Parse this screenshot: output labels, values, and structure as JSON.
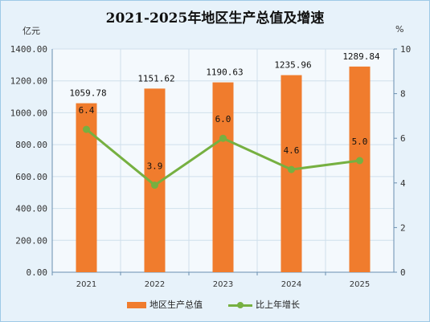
{
  "chart_data": {
    "type": "bar+line",
    "title": "2021-2025年地区生产总值及增速",
    "left_unit": "亿元",
    "right_unit": "%",
    "categories": [
      "2021",
      "2022",
      "2023",
      "2024",
      "2025"
    ],
    "bar_series": {
      "name": "地区生产总值",
      "values": [
        1059.78,
        1151.62,
        1190.63,
        1235.96,
        1289.84
      ],
      "labels": [
        "1059.78",
        "1151.62",
        "1190.63",
        "1235.96",
        "1289.84"
      ],
      "color": "#f07c2d"
    },
    "line_series": {
      "name": "比上年增长",
      "values": [
        6.4,
        3.9,
        6.0,
        4.6,
        5.0
      ],
      "labels": [
        "6.4",
        "3.9",
        "6.0",
        "4.6",
        "5.0"
      ],
      "color": "#76b041"
    },
    "y_left": {
      "range": [
        0,
        1400
      ],
      "ticks": [
        "0.00",
        "200.00",
        "400.00",
        "600.00",
        "800.00",
        "1000.00",
        "1200.00",
        "1400.00"
      ]
    },
    "y_right": {
      "range": [
        0,
        10
      ],
      "ticks": [
        "0",
        "2",
        "4",
        "6",
        "8",
        "10"
      ]
    },
    "grid": true,
    "legend_position": "bottom"
  }
}
